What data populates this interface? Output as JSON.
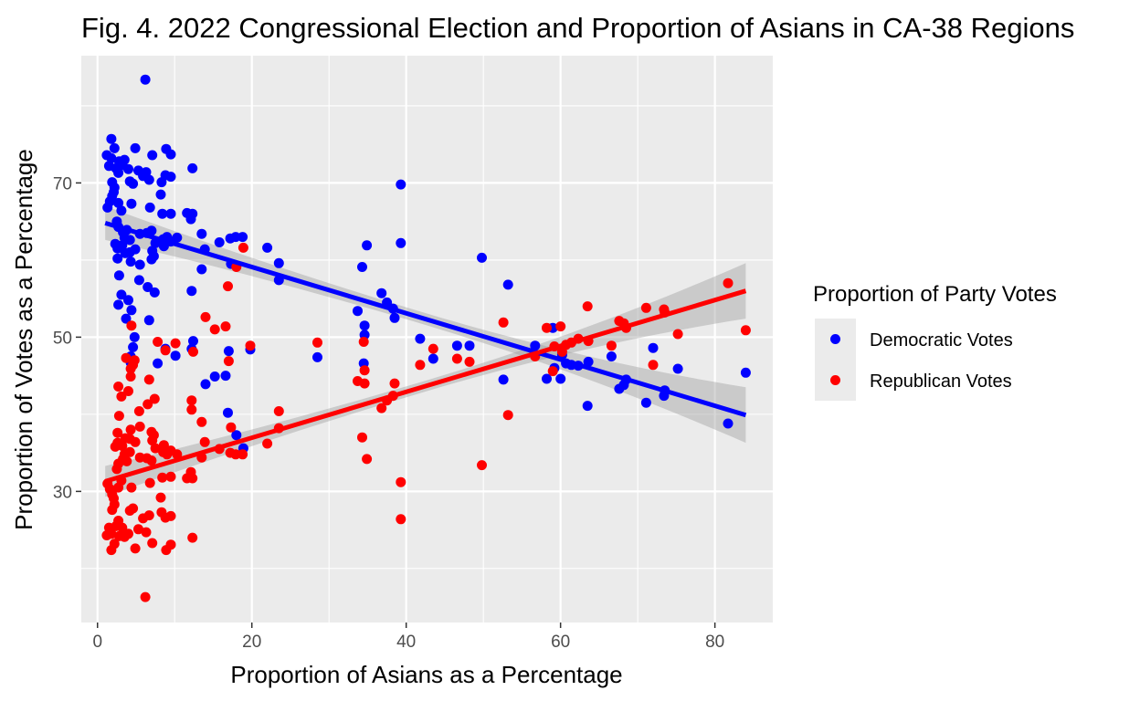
{
  "chart_data": {
    "type": "scatter",
    "title": "Fig. 4. 2022 Congressional Election and Proportion of Asians in CA-38 Regions",
    "xlabel": "Proportion of Asians as a Percentage",
    "ylabel": "Proportion of Votes as a Percentage",
    "xlim": [
      -2.1,
      87.5
    ],
    "ylim": [
      13.0,
      86.5
    ],
    "x_ticks": [
      0,
      20,
      40,
      60,
      80
    ],
    "y_ticks": [
      30,
      50,
      70
    ],
    "grid": true,
    "legend": {
      "title": "Proportion of Party Votes",
      "position": "right"
    },
    "series": [
      {
        "name": "Democratic Votes",
        "color": "#0000ff",
        "trend": {
          "x": [
            1.0,
            84.0
          ],
          "y": [
            64.8,
            39.9
          ],
          "ci_start": 2.2,
          "ci_end": 3.6
        },
        "points": [
          [
            6.2,
            83.4
          ],
          [
            1.2,
            73.6
          ],
          [
            1.8,
            75.7
          ],
          [
            2.2,
            74.5
          ],
          [
            2.8,
            72.8
          ],
          [
            3.5,
            73.0
          ],
          [
            4.0,
            71.8
          ],
          [
            4.9,
            74.5
          ],
          [
            5.3,
            71.6
          ],
          [
            6.3,
            71.4
          ],
          [
            7.1,
            73.6
          ],
          [
            8.9,
            74.4
          ],
          [
            9.5,
            73.7
          ],
          [
            12.3,
            71.9
          ],
          [
            1.5,
            72.2
          ],
          [
            1.8,
            73.2
          ],
          [
            2.4,
            71.9
          ],
          [
            2.7,
            71.3
          ],
          [
            3.2,
            72.3
          ],
          [
            1.9,
            70.1
          ],
          [
            2.2,
            69.4
          ],
          [
            4.2,
            70.2
          ],
          [
            4.6,
            69.9
          ],
          [
            6.7,
            70.4
          ],
          [
            8.3,
            70.1
          ],
          [
            8.8,
            71.0
          ],
          [
            5.9,
            70.9
          ],
          [
            9.5,
            70.8
          ],
          [
            1.3,
            66.8
          ],
          [
            1.6,
            67.6
          ],
          [
            1.9,
            68.3
          ],
          [
            2.1,
            68.8
          ],
          [
            2.7,
            67.4
          ],
          [
            3.1,
            66.4
          ],
          [
            2.5,
            65.0
          ],
          [
            4.4,
            67.3
          ],
          [
            6.8,
            66.8
          ],
          [
            8.2,
            68.5
          ],
          [
            8.4,
            66.0
          ],
          [
            9.5,
            66.0
          ],
          [
            11.6,
            66.1
          ],
          [
            12.1,
            65.3
          ],
          [
            12.3,
            66.0
          ],
          [
            2.7,
            64.3
          ],
          [
            3.3,
            63.6
          ],
          [
            3.5,
            62.9
          ],
          [
            3.8,
            63.9
          ],
          [
            4.2,
            62.6
          ],
          [
            5.5,
            63.4
          ],
          [
            6.4,
            63.5
          ],
          [
            7.0,
            63.8
          ],
          [
            7.5,
            62.2
          ],
          [
            8.5,
            62.7
          ],
          [
            9.0,
            63.0
          ],
          [
            9.5,
            62.4
          ],
          [
            10.3,
            62.9
          ],
          [
            13.5,
            63.4
          ],
          [
            2.3,
            62.1
          ],
          [
            2.6,
            61.5
          ],
          [
            3.2,
            61.9
          ],
          [
            3.6,
            60.9
          ],
          [
            4.2,
            61.0
          ],
          [
            4.9,
            61.4
          ],
          [
            7.1,
            61.2
          ],
          [
            7.3,
            60.5
          ],
          [
            8.6,
            61.8
          ],
          [
            13.9,
            61.4
          ],
          [
            15.8,
            62.3
          ],
          [
            17.2,
            62.8
          ],
          [
            17.9,
            63.0
          ],
          [
            18.8,
            63.0
          ],
          [
            22.0,
            61.6
          ],
          [
            2.6,
            60.2
          ],
          [
            4.3,
            59.8
          ],
          [
            5.5,
            59.4
          ],
          [
            7.0,
            60.1
          ],
          [
            13.5,
            58.8
          ],
          [
            17.3,
            59.5
          ],
          [
            23.5,
            59.6
          ],
          [
            2.8,
            58.0
          ],
          [
            5.4,
            57.4
          ],
          [
            6.5,
            56.5
          ],
          [
            3.1,
            55.5
          ],
          [
            4.0,
            54.8
          ],
          [
            2.7,
            54.2
          ],
          [
            7.4,
            55.8
          ],
          [
            12.2,
            56.0
          ],
          [
            23.5,
            57.4
          ],
          [
            4.4,
            53.5
          ],
          [
            3.7,
            52.4
          ],
          [
            6.7,
            52.2
          ],
          [
            4.8,
            50.0
          ],
          [
            4.6,
            48.7
          ],
          [
            4.3,
            47.5
          ],
          [
            4.3,
            46.7
          ],
          [
            7.8,
            46.6
          ],
          [
            8.8,
            48.5
          ],
          [
            10.1,
            47.6
          ],
          [
            12.4,
            49.5
          ],
          [
            12.2,
            48.5
          ],
          [
            14.0,
            43.9
          ],
          [
            15.2,
            44.9
          ],
          [
            16.6,
            45.0
          ],
          [
            17.0,
            48.2
          ],
          [
            16.9,
            40.2
          ],
          [
            18.0,
            37.3
          ],
          [
            18.9,
            35.6
          ],
          [
            19.8,
            48.4
          ],
          [
            34.3,
            59.1
          ],
          [
            34.9,
            61.9
          ],
          [
            36.8,
            55.7
          ],
          [
            37.5,
            54.5
          ],
          [
            38.3,
            53.7
          ],
          [
            38.5,
            52.5
          ],
          [
            39.3,
            69.8
          ],
          [
            39.3,
            62.2
          ],
          [
            33.7,
            53.4
          ],
          [
            34.6,
            51.5
          ],
          [
            34.6,
            50.3
          ],
          [
            34.5,
            46.6
          ],
          [
            28.5,
            47.4
          ],
          [
            41.8,
            49.8
          ],
          [
            43.5,
            47.2
          ],
          [
            46.6,
            48.9
          ],
          [
            48.2,
            48.9
          ],
          [
            49.8,
            60.3
          ],
          [
            52.6,
            44.5
          ],
          [
            53.2,
            56.8
          ],
          [
            56.7,
            48.9
          ],
          [
            58.2,
            44.6
          ],
          [
            59.0,
            51.2
          ],
          [
            59.2,
            46.0
          ],
          [
            60.0,
            44.6
          ],
          [
            60.2,
            47.7
          ],
          [
            60.7,
            46.6
          ],
          [
            61.4,
            46.4
          ],
          [
            62.3,
            46.3
          ],
          [
            63.6,
            46.8
          ],
          [
            63.5,
            41.1
          ],
          [
            66.6,
            47.5
          ],
          [
            67.6,
            43.3
          ],
          [
            68.2,
            43.8
          ],
          [
            68.5,
            44.5
          ],
          [
            71.1,
            41.5
          ],
          [
            72.0,
            48.6
          ],
          [
            73.5,
            43.1
          ],
          [
            73.4,
            42.4
          ],
          [
            75.2,
            45.9
          ],
          [
            81.7,
            38.8
          ],
          [
            84.0,
            45.4
          ]
        ]
      },
      {
        "name": "Republican Votes",
        "color": "#ff0000",
        "trend": {
          "x": [
            1.0,
            84.0
          ],
          "y": [
            31.3,
            56.0
          ],
          "ci_start": 2.0,
          "ci_end": 3.6
        },
        "points": [
          [
            6.2,
            16.3
          ],
          [
            1.2,
            24.3
          ],
          [
            1.8,
            22.4
          ],
          [
            2.2,
            23.2
          ],
          [
            2.8,
            24.2
          ],
          [
            3.5,
            24.1
          ],
          [
            4.0,
            24.5
          ],
          [
            4.9,
            22.6
          ],
          [
            5.3,
            25.1
          ],
          [
            6.3,
            24.7
          ],
          [
            7.1,
            23.3
          ],
          [
            8.9,
            22.4
          ],
          [
            9.5,
            23.1
          ],
          [
            12.3,
            24.0
          ],
          [
            1.5,
            25.3
          ],
          [
            1.8,
            24.5
          ],
          [
            2.4,
            25.5
          ],
          [
            2.7,
            26.2
          ],
          [
            3.2,
            25.3
          ],
          [
            1.9,
            27.6
          ],
          [
            2.2,
            28.3
          ],
          [
            4.2,
            27.5
          ],
          [
            4.6,
            27.8
          ],
          [
            6.7,
            26.9
          ],
          [
            8.3,
            27.3
          ],
          [
            8.8,
            26.6
          ],
          [
            5.9,
            26.5
          ],
          [
            9.5,
            26.8
          ],
          [
            1.3,
            31.0
          ],
          [
            1.6,
            30.3
          ],
          [
            1.9,
            29.6
          ],
          [
            2.1,
            29.1
          ],
          [
            2.7,
            30.5
          ],
          [
            3.1,
            31.4
          ],
          [
            2.5,
            32.9
          ],
          [
            4.4,
            30.5
          ],
          [
            6.8,
            31.1
          ],
          [
            8.2,
            29.2
          ],
          [
            8.4,
            31.8
          ],
          [
            9.5,
            31.9
          ],
          [
            11.6,
            31.7
          ],
          [
            12.1,
            32.5
          ],
          [
            12.3,
            31.7
          ],
          [
            2.7,
            33.6
          ],
          [
            3.3,
            34.2
          ],
          [
            3.5,
            34.8
          ],
          [
            3.8,
            33.9
          ],
          [
            4.2,
            35.1
          ],
          [
            5.5,
            34.4
          ],
          [
            6.4,
            34.3
          ],
          [
            7.0,
            34.0
          ],
          [
            7.5,
            35.6
          ],
          [
            8.5,
            35.1
          ],
          [
            9.0,
            34.8
          ],
          [
            9.5,
            35.3
          ],
          [
            10.3,
            34.8
          ],
          [
            13.5,
            34.4
          ],
          [
            2.3,
            35.8
          ],
          [
            2.6,
            36.3
          ],
          [
            3.2,
            35.9
          ],
          [
            3.6,
            36.9
          ],
          [
            4.2,
            36.8
          ],
          [
            4.9,
            36.4
          ],
          [
            7.1,
            36.6
          ],
          [
            7.3,
            37.3
          ],
          [
            8.6,
            36.0
          ],
          [
            13.9,
            36.4
          ],
          [
            15.8,
            35.5
          ],
          [
            17.2,
            35.0
          ],
          [
            17.9,
            34.8
          ],
          [
            18.8,
            34.8
          ],
          [
            22.0,
            36.2
          ],
          [
            2.6,
            37.6
          ],
          [
            4.3,
            38.0
          ],
          [
            5.5,
            38.4
          ],
          [
            7.0,
            37.7
          ],
          [
            13.5,
            39.0
          ],
          [
            17.3,
            38.3
          ],
          [
            23.5,
            38.2
          ],
          [
            2.8,
            39.8
          ],
          [
            5.4,
            40.4
          ],
          [
            6.5,
            41.3
          ],
          [
            3.1,
            42.3
          ],
          [
            4.0,
            43.0
          ],
          [
            2.7,
            43.6
          ],
          [
            7.4,
            42.0
          ],
          [
            12.2,
            41.8
          ],
          [
            23.5,
            40.4
          ],
          [
            4.4,
            51.5
          ],
          [
            3.7,
            47.3
          ],
          [
            6.7,
            44.5
          ],
          [
            4.8,
            47.0
          ],
          [
            4.6,
            46.4
          ],
          [
            4.3,
            45.9
          ],
          [
            4.3,
            44.9
          ],
          [
            7.8,
            49.4
          ],
          [
            8.8,
            48.3
          ],
          [
            10.1,
            49.2
          ],
          [
            12.4,
            48.1
          ],
          [
            12.2,
            40.6
          ],
          [
            14.0,
            52.6
          ],
          [
            15.2,
            51.0
          ],
          [
            16.6,
            51.4
          ],
          [
            17.0,
            46.9
          ],
          [
            16.9,
            56.6
          ],
          [
            18.0,
            59.1
          ],
          [
            18.9,
            61.6
          ],
          [
            19.8,
            48.9
          ],
          [
            34.3,
            37.0
          ],
          [
            34.9,
            34.2
          ],
          [
            36.8,
            40.8
          ],
          [
            37.5,
            41.8
          ],
          [
            38.3,
            42.4
          ],
          [
            38.5,
            44.0
          ],
          [
            39.3,
            26.4
          ],
          [
            39.3,
            31.2
          ],
          [
            33.7,
            44.3
          ],
          [
            34.6,
            45.7
          ],
          [
            34.6,
            44.0
          ],
          [
            34.5,
            49.4
          ],
          [
            28.5,
            49.3
          ],
          [
            41.8,
            46.4
          ],
          [
            43.5,
            48.5
          ],
          [
            46.6,
            47.2
          ],
          [
            48.2,
            46.8
          ],
          [
            49.8,
            33.4
          ],
          [
            52.6,
            51.9
          ],
          [
            53.2,
            39.9
          ],
          [
            56.7,
            47.5
          ],
          [
            58.2,
            51.2
          ],
          [
            59.0,
            45.6
          ],
          [
            59.2,
            48.8
          ],
          [
            60.0,
            51.4
          ],
          [
            60.2,
            48.1
          ],
          [
            60.7,
            49.0
          ],
          [
            61.4,
            49.3
          ],
          [
            62.3,
            49.8
          ],
          [
            63.6,
            49.5
          ],
          [
            63.5,
            54.0
          ],
          [
            66.6,
            48.9
          ],
          [
            67.6,
            52.1
          ],
          [
            68.2,
            51.8
          ],
          [
            68.5,
            51.2
          ],
          [
            71.1,
            53.8
          ],
          [
            72.0,
            46.4
          ],
          [
            73.5,
            53.2
          ],
          [
            73.4,
            53.6
          ],
          [
            75.2,
            50.4
          ],
          [
            81.7,
            57.0
          ],
          [
            84.0,
            50.9
          ]
        ]
      }
    ]
  }
}
